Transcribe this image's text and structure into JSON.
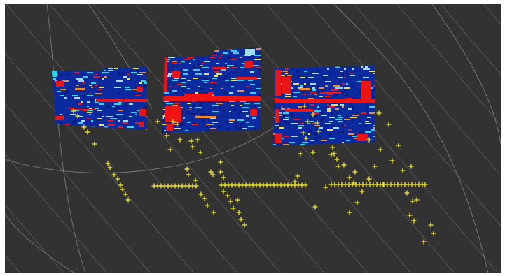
{
  "viewer": {
    "background": "#323232",
    "line_color": "#8a8a8a",
    "marker_color": "#f2e628"
  },
  "heatmap_palette": {
    "base": "#0b2aa0",
    "dark": "#071a7a",
    "cyan": "#28d8e8",
    "light": "#9fdcf5",
    "yellow": "#f0e040",
    "orange": "#f08c28",
    "red": "#ee1414"
  },
  "patches": [
    {
      "name": "heatmap-patch-left",
      "seed": 11
    },
    {
      "name": "heatmap-patch-center",
      "seed": 23
    },
    {
      "name": "heatmap-patch-right",
      "seed": 37
    }
  ],
  "markers": {
    "count": 170
  }
}
